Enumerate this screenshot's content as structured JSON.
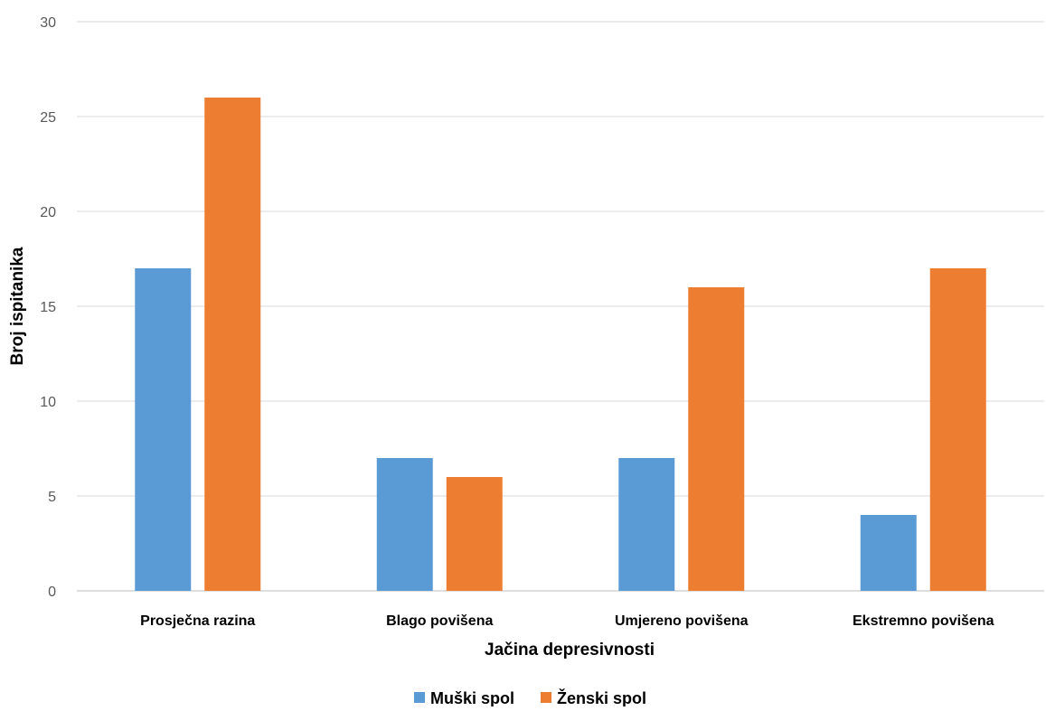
{
  "chart_data": {
    "type": "bar",
    "title": "",
    "xlabel": "Jačina depresivnosti",
    "ylabel": "Broj ispitanika",
    "ylim": [
      0,
      30
    ],
    "yticks": [
      0,
      5,
      10,
      15,
      20,
      25,
      30
    ],
    "grid": true,
    "legend_position": "bottom",
    "categories": [
      "Prosječna razina",
      "Blago povišena",
      "Umjereno povišena",
      "Ekstremno povišena"
    ],
    "series": [
      {
        "name": "Muški spol",
        "color": "#5b9bd5",
        "values": [
          17,
          7,
          7,
          4
        ]
      },
      {
        "name": "Ženski spol",
        "color": "#ed7d31",
        "values": [
          26,
          6,
          16,
          17
        ]
      }
    ]
  }
}
